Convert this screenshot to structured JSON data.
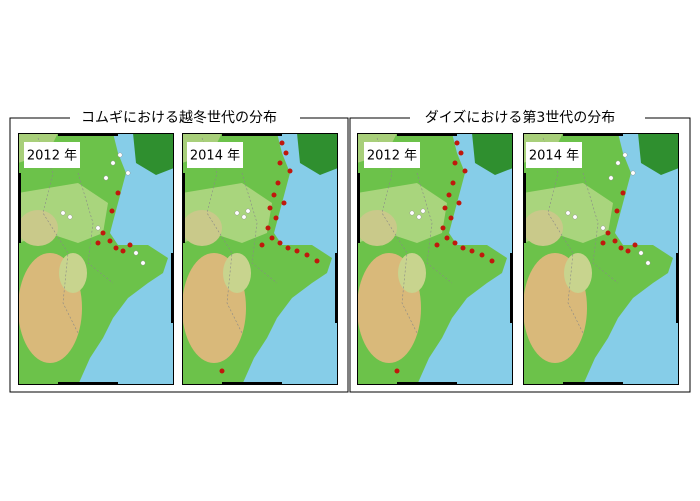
{
  "panels": [
    {
      "title": "コムギにおける越冬世代の分布",
      "maps": [
        {
          "label": "2012 年"
        },
        {
          "label": "2014 年"
        }
      ]
    },
    {
      "title": "ダイズにおける第3世代の分布",
      "maps": [
        {
          "label": "2012 年"
        },
        {
          "label": "2014 年"
        }
      ]
    }
  ]
}
